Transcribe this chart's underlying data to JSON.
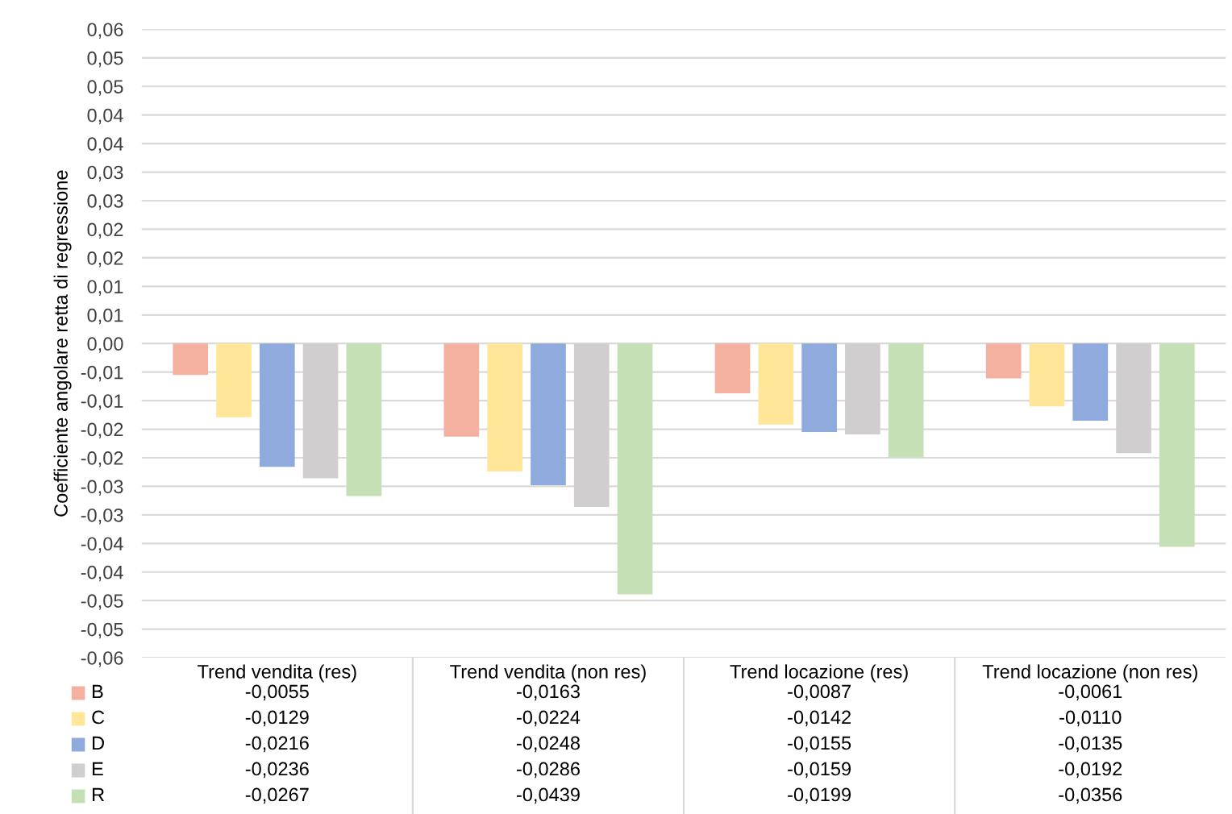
{
  "chart_data": {
    "type": "bar",
    "ylabel": "Coefficiente angolare retta di regressione",
    "categories": [
      "Trend vendita (res)",
      "Trend vendita (non res)",
      "Trend locazione (res)",
      "Trend locazione (non res)"
    ],
    "series": [
      {
        "name": "B",
        "color": "#f4b1a0",
        "values": [
          -0.0055,
          -0.0163,
          -0.0087,
          -0.0061
        ],
        "value_labels": [
          "-0,0055",
          "-0,0163",
          "-0,0087",
          "-0,0061"
        ]
      },
      {
        "name": "C",
        "color": "#ffe699",
        "values": [
          -0.0129,
          -0.0224,
          -0.0142,
          -0.011
        ],
        "value_labels": [
          "-0,0129",
          "-0,0224",
          "-0,0142",
          "-0,0110"
        ]
      },
      {
        "name": "D",
        "color": "#8faadc",
        "values": [
          -0.0216,
          -0.0248,
          -0.0155,
          -0.0135
        ],
        "value_labels": [
          "-0,0216",
          "-0,0248",
          "-0,0155",
          "-0,0135"
        ]
      },
      {
        "name": "E",
        "color": "#d0cece",
        "values": [
          -0.0236,
          -0.0286,
          -0.0159,
          -0.0192
        ],
        "value_labels": [
          "-0,0236",
          "-0,0286",
          "-0,0159",
          "-0,0192"
        ]
      },
      {
        "name": "R",
        "color": "#c5e0b4",
        "values": [
          -0.0267,
          -0.0439,
          -0.0199,
          -0.0356
        ],
        "value_labels": [
          "-0,0267",
          "-0,0439",
          "-0,0199",
          "-0,0356"
        ]
      }
    ],
    "ylim": [
      -0.055,
      0.055
    ],
    "yticks": [
      {
        "value": 0.055,
        "label": "0,06"
      },
      {
        "value": 0.05,
        "label": "0,05"
      },
      {
        "value": 0.045,
        "label": "0,05"
      },
      {
        "value": 0.04,
        "label": "0,04"
      },
      {
        "value": 0.035,
        "label": "0,04"
      },
      {
        "value": 0.03,
        "label": "0,03"
      },
      {
        "value": 0.025,
        "label": "0,03"
      },
      {
        "value": 0.02,
        "label": "0,02"
      },
      {
        "value": 0.015,
        "label": "0,02"
      },
      {
        "value": 0.01,
        "label": "0,01"
      },
      {
        "value": 0.005,
        "label": "0,01"
      },
      {
        "value": 0,
        "label": "0,00"
      },
      {
        "value": -0.005,
        "label": "-0,01"
      },
      {
        "value": -0.01,
        "label": "-0,01"
      },
      {
        "value": -0.015,
        "label": "-0,02"
      },
      {
        "value": -0.02,
        "label": "-0,02"
      },
      {
        "value": -0.025,
        "label": "-0,03"
      },
      {
        "value": -0.03,
        "label": "-0,03"
      },
      {
        "value": -0.035,
        "label": "-0,04"
      },
      {
        "value": -0.04,
        "label": "-0,04"
      },
      {
        "value": -0.045,
        "label": "-0,05"
      },
      {
        "value": -0.05,
        "label": "-0,05"
      },
      {
        "value": -0.055,
        "label": "-0,06"
      }
    ],
    "grid": "y",
    "legend": "bottom left"
  }
}
